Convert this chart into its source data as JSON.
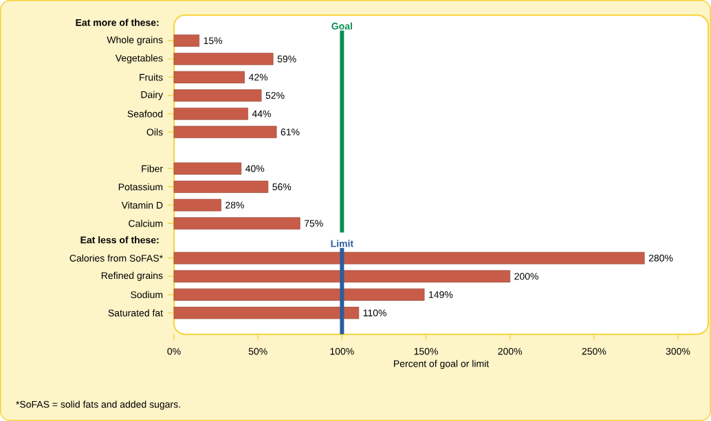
{
  "chart_data": [
    {
      "type": "bar",
      "orientation": "horizontal",
      "title": "Eat more of these:",
      "tick_labels": "y",
      "categories": [
        "Whole grains",
        "Vegetables",
        "Fruits",
        "Dairy",
        "Seafood",
        "Oils",
        null,
        "Fiber",
        "Potassium",
        "Vitamin D",
        "Calcium"
      ],
      "values": [
        15,
        59,
        42,
        52,
        44,
        61,
        null,
        40,
        56,
        28,
        75
      ],
      "value_labels": [
        "15%",
        "59%",
        "42%",
        "52%",
        "44%",
        "61%",
        null,
        "40%",
        "56%",
        "28%",
        "75%"
      ],
      "color": "#c75d49",
      "xlim": [
        0,
        318
      ],
      "ref_lines": [
        {
          "axis": "x",
          "value": 100,
          "label": "Goal",
          "color": "#0b8e52"
        }
      ]
    },
    {
      "type": "bar",
      "orientation": "horizontal",
      "title": "Eat less of these:",
      "categories": [
        "Calories from SoFAS*",
        "Refined grains",
        "Sodium",
        "Saturated fat"
      ],
      "values": [
        280,
        200,
        149,
        110
      ],
      "value_labels": [
        "280%",
        "200%",
        "149%",
        "110%"
      ],
      "color": "#c75d49",
      "xlim": [
        0,
        318
      ],
      "xticks": [
        {
          "value": 0,
          "label": "0%"
        },
        {
          "value": 50,
          "label": "50%"
        },
        {
          "value": 100,
          "label": "100%"
        },
        {
          "value": 150,
          "label": "150%"
        },
        {
          "value": 200,
          "label": "200%"
        },
        {
          "value": 250,
          "label": "250%"
        },
        {
          "value": 300,
          "label": "300%"
        }
      ],
      "xlabel": "Percent of goal or limit",
      "ref_lines": [
        {
          "axis": "x",
          "value": 100,
          "label": "Limit",
          "color": "#2b5c9e"
        }
      ],
      "annotations": [
        "*SoFAS = solid fats and added sugars."
      ]
    }
  ]
}
